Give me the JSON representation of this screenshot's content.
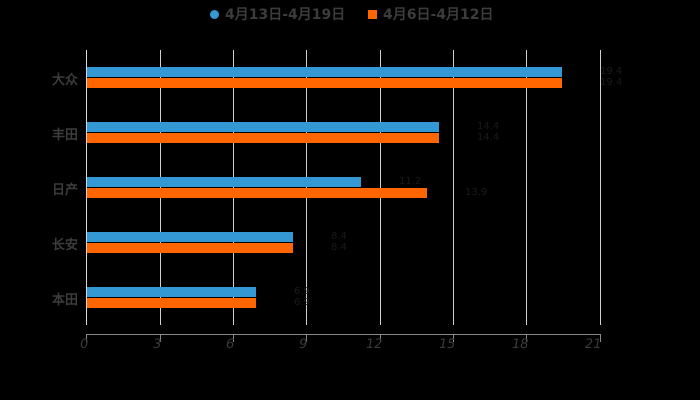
{
  "legend": [
    {
      "label": "4月13日-4月19日",
      "color": "#3498d4",
      "marker": "circle"
    },
    {
      "label": "4月6日-4月12日",
      "color": "#ff6600",
      "marker": "square"
    }
  ],
  "axis": {
    "ticks": [
      "0",
      "3",
      "6",
      "9",
      "12",
      "15",
      "18",
      "21"
    ]
  },
  "categories": [
    "大众",
    "丰田",
    "日产",
    "长安",
    "本田"
  ],
  "chart_data": {
    "type": "bar",
    "orientation": "horizontal",
    "title": "",
    "categories": [
      "大众",
      "丰田",
      "日产",
      "长安",
      "本田"
    ],
    "series": [
      {
        "name": "4月13日-4月19日",
        "color": "#3498d4",
        "values": [
          19.4,
          14.4,
          11.2,
          8.4,
          6.9
        ]
      },
      {
        "name": "4月6日-4月12日",
        "color": "#ff6600",
        "values": [
          19.4,
          14.4,
          13.9,
          8.4,
          6.9
        ]
      }
    ],
    "xlabel": "",
    "ylabel": "",
    "xlim": [
      0,
      21
    ],
    "xticks": [
      0,
      3,
      6,
      9,
      12,
      15,
      18,
      21
    ],
    "grid": "vertical",
    "legend_position": "top"
  }
}
